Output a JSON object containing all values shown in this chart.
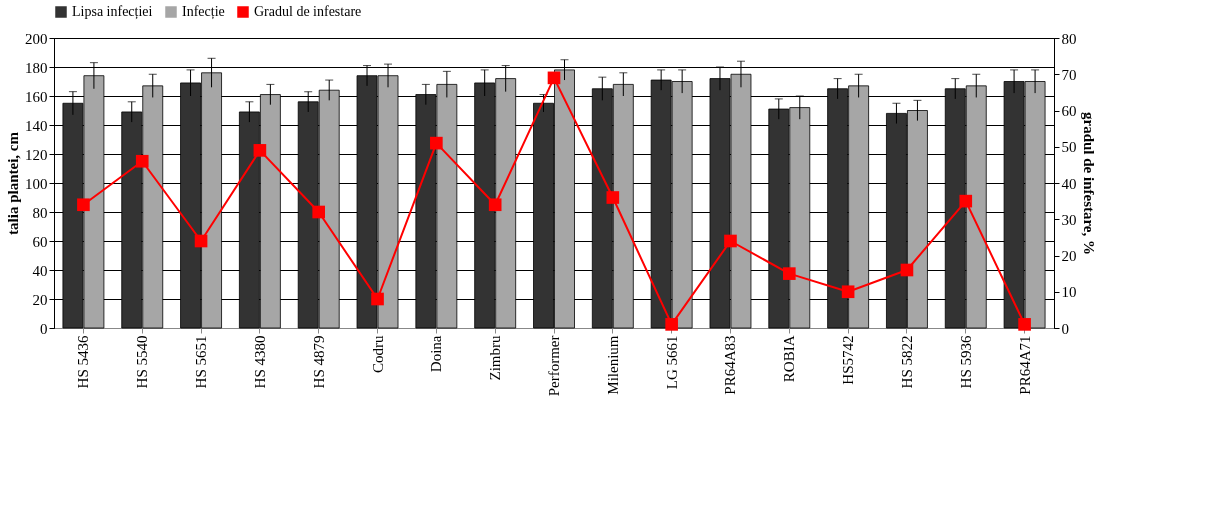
{
  "chart_data": {
    "type": "bar",
    "ylabel": "talia plantei, cm",
    "y2label": "gradul de infestare, %",
    "categories": [
      "HS 5436",
      "HS 5540",
      "HS 5651",
      "HS 4380",
      "HS 4879",
      "Codru",
      "Doina",
      "Zimbru",
      "Performer",
      "Milenium",
      "LG 5661",
      "PR64A83",
      "ROBIA",
      "HS5742",
      "HS 5822",
      "HS 5936",
      "PR64A71"
    ],
    "series": [
      {
        "name": "Lipsa infecției",
        "color": "#333333",
        "values": [
          155,
          149,
          169,
          149,
          156,
          174,
          161,
          169,
          155,
          165,
          171,
          172,
          151,
          165,
          148,
          165,
          170
        ],
        "errors": [
          8,
          7,
          9,
          7,
          7,
          7,
          7,
          9,
          6,
          8,
          7,
          8,
          7,
          7,
          7,
          7,
          8
        ]
      },
      {
        "name": "Infecție",
        "color": "#a6a6a6",
        "values": [
          174,
          167,
          176,
          161,
          164,
          174,
          168,
          172,
          178,
          168,
          170,
          175,
          152,
          167,
          150,
          167,
          170
        ],
        "errors": [
          9,
          8,
          10,
          7,
          7,
          8,
          9,
          9,
          7,
          8,
          8,
          9,
          8,
          8,
          7,
          8,
          8
        ]
      },
      {
        "name": "Gradul de infestare",
        "type": "line",
        "axis": "y2",
        "color": "#ff0000",
        "marker": "square",
        "values": [
          34,
          46,
          24,
          49,
          32,
          8,
          51,
          34,
          69,
          36,
          1,
          24,
          15,
          10,
          16,
          35,
          1
        ]
      }
    ],
    "ylim": [
      0,
      200
    ],
    "yticks": [
      0,
      20,
      40,
      60,
      80,
      100,
      120,
      140,
      160,
      180,
      200
    ],
    "y2lim": [
      0,
      80
    ],
    "y2ticks": [
      0,
      10,
      20,
      30,
      40,
      50,
      60,
      70,
      80
    ],
    "grid": "y",
    "legend": "top"
  }
}
